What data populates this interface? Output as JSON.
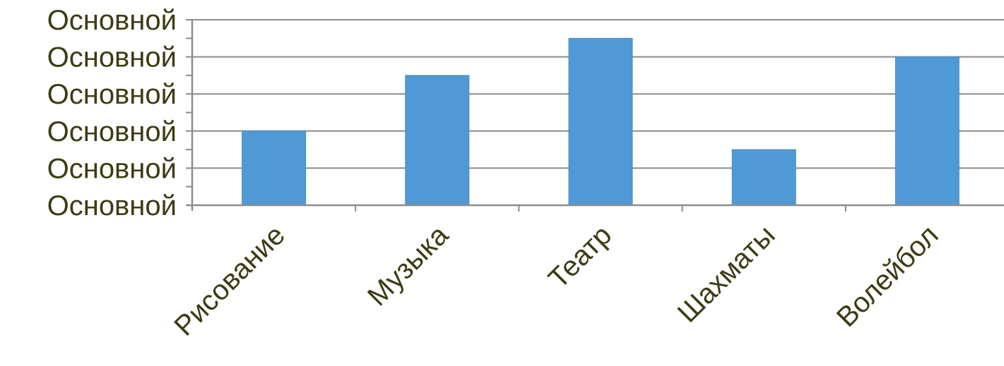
{
  "chart_data": {
    "type": "bar",
    "categories": [
      "Рисование",
      "Музыка",
      "Театр",
      "Шахматы",
      "Волейбол"
    ],
    "values": [
      2,
      3.5,
      4.5,
      1.5,
      4
    ],
    "ylim": [
      0,
      5
    ],
    "y_major_step": 1,
    "y_minor_step": 0.5,
    "y_tick_labels": [
      "Основной",
      "Основной",
      "Основной",
      "Основной",
      "Основной",
      "Основной"
    ],
    "grid": true,
    "legend": "none",
    "colors": {
      "bar": "#4f9ad6",
      "grid": "#8c8c8c",
      "text": "#3c3c14"
    }
  }
}
